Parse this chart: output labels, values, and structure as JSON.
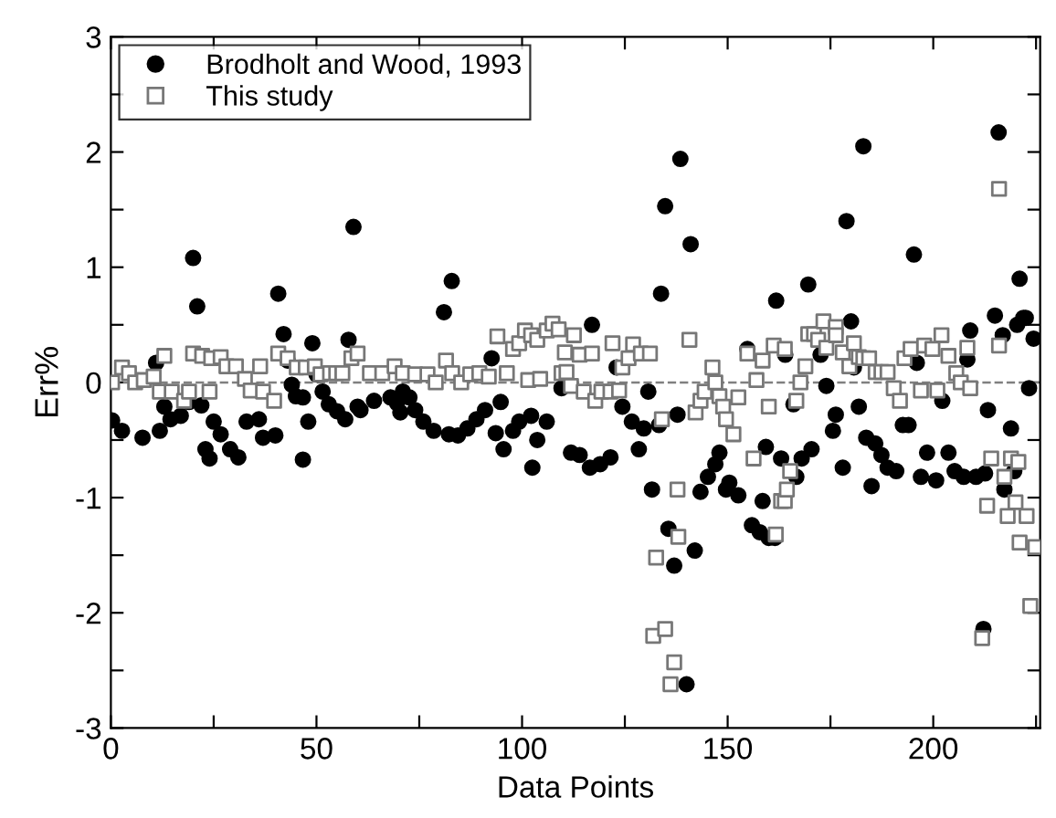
{
  "chart_data": {
    "type": "scatter",
    "xlabel": "Data Points",
    "ylabel": "Err%",
    "xlim": [
      0,
      226
    ],
    "ylim": [
      -3,
      3
    ],
    "xticks": [
      0,
      {
        "value": 25,
        "label": null
      },
      50,
      {
        "value": 75,
        "label": null
      },
      100,
      {
        "value": 125,
        "label": null
      },
      150,
      {
        "value": 175,
        "label": null
      },
      200,
      {
        "value": 225,
        "label": null
      }
    ],
    "yticks": [
      -3,
      {
        "value": -2.5,
        "label": null
      },
      -2,
      {
        "value": -1.5,
        "label": null
      },
      -1,
      {
        "value": -0.5,
        "label": null
      },
      0,
      {
        "value": 0.5,
        "label": null
      },
      1,
      {
        "value": 1.5,
        "label": null
      },
      2,
      {
        "value": 2.5,
        "label": null
      },
      3
    ],
    "grid": false,
    "legend": "top left",
    "ref_lines": [
      {
        "axis": "y",
        "value": 0,
        "color": "#808080",
        "line_style": "dashed"
      }
    ],
    "series": [
      {
        "name": "Brodholt and Wood, 1993",
        "color": "#000000",
        "marker": "circle",
        "x": [
          0.3,
          2.7,
          7.7,
          11,
          11.9,
          13,
          14.5,
          17,
          19,
          20,
          21,
          22,
          23,
          24,
          25,
          26.7,
          29,
          31,
          33,
          36,
          37,
          40,
          40.7,
          42,
          43,
          44,
          45,
          46.7,
          46.7,
          48,
          49,
          50,
          51.5,
          53,
          55,
          57,
          57.8,
          59,
          60,
          60.7,
          64,
          68,
          69.6,
          70.4,
          71,
          72.6,
          74,
          76,
          78.5,
          81,
          82.2,
          82.9,
          84.4,
          86.7,
          88.9,
          91,
          92.6,
          93.6,
          94.8,
          95.5,
          97.8,
          99.3,
          102.2,
          102.5,
          103.7,
          106,
          109.6,
          111.9,
          114,
          116.5,
          117,
          119,
          121.5,
          123,
          124.4,
          126.7,
          128.4,
          129.6,
          130.7,
          131.6,
          133.3,
          133.8,
          134.8,
          135.6,
          137,
          137.8,
          138.5,
          140,
          141,
          142,
          143.4,
          145.2,
          147,
          148,
          149.6,
          150.4,
          152.6,
          154.8,
          155.9,
          157.8,
          158.5,
          159.3,
          160,
          161.5,
          161.8,
          163,
          164,
          166,
          166.7,
          168,
          169.6,
          170.4,
          172.6,
          174,
          175.6,
          176.3,
          178,
          178.9,
          180,
          180.7,
          181.9,
          183,
          183.7,
          185,
          185.9,
          187.4,
          188.9,
          191,
          192.6,
          194,
          195.3,
          196,
          197,
          198.5,
          200.7,
          202.2,
          203.7,
          205.2,
          207.4,
          208.3,
          209,
          210.4,
          212.2,
          212.6,
          213.3,
          215,
          215.9,
          216.9,
          217.3,
          218.9,
          219.7,
          220.4,
          221,
          221.9,
          222.5,
          223.3,
          224.4
        ],
        "values": [
          -0.33,
          -0.42,
          -0.48,
          0.17,
          -0.42,
          -0.21,
          -0.32,
          -0.29,
          -0.17,
          1.08,
          0.66,
          -0.2,
          -0.58,
          -0.66,
          -0.34,
          -0.45,
          -0.58,
          -0.65,
          -0.34,
          -0.32,
          -0.48,
          -0.46,
          0.77,
          0.42,
          0.19,
          -0.02,
          -0.12,
          -0.13,
          -0.67,
          -0.34,
          0.34,
          0.07,
          -0.08,
          -0.19,
          -0.25,
          -0.32,
          0.37,
          1.35,
          -0.21,
          -0.24,
          -0.16,
          -0.13,
          -0.18,
          -0.26,
          -0.08,
          -0.13,
          -0.24,
          -0.34,
          -0.42,
          0.61,
          -0.45,
          0.88,
          -0.46,
          -0.4,
          -0.32,
          -0.24,
          0.21,
          -0.44,
          -0.17,
          -0.58,
          -0.42,
          -0.34,
          -0.29,
          -0.74,
          -0.5,
          -0.34,
          -0.05,
          -0.61,
          -0.63,
          -0.74,
          0.5,
          -0.71,
          -0.65,
          0.13,
          -0.21,
          -0.34,
          -0.58,
          -0.4,
          -0.08,
          -0.93,
          -0.37,
          0.77,
          1.53,
          -1.27,
          -1.59,
          -0.28,
          1.94,
          -2.62,
          1.2,
          -1.46,
          -0.95,
          -0.82,
          -0.71,
          -0.61,
          -0.93,
          -0.87,
          -0.98,
          0.29,
          -1.24,
          -1.3,
          -1.03,
          -0.56,
          -1.35,
          -1.35,
          0.71,
          -0.66,
          0.24,
          -0.19,
          -0.82,
          -0.66,
          0.85,
          -0.58,
          0.24,
          -0.03,
          -0.42,
          -0.28,
          -0.74,
          1.4,
          0.53,
          0.13,
          -0.21,
          2.05,
          -0.48,
          -0.9,
          -0.53,
          -0.63,
          -0.74,
          -0.77,
          -0.37,
          -0.37,
          1.11,
          0.17,
          -0.82,
          -0.61,
          -0.85,
          -0.16,
          -0.61,
          -0.77,
          -0.82,
          0.2,
          0.45,
          -0.82,
          -2.14,
          -0.79,
          -0.24,
          0.58,
          2.17,
          0.41,
          -0.93,
          -0.4,
          -0.77,
          0.5,
          0.9,
          0.56,
          0.56,
          -0.05,
          0.38
        ]
      },
      {
        "name": "This study",
        "color": "#777777",
        "marker": "square",
        "x": [
          0.3,
          2.7,
          4.4,
          5.9,
          8,
          10.4,
          11.9,
          13,
          14.8,
          17.8,
          19,
          20,
          22.2,
          24,
          24.4,
          26.7,
          28.1,
          30.4,
          32.6,
          34,
          36.3,
          37,
          39.7,
          40.7,
          43,
          45.2,
          47.4,
          49.6,
          51,
          53.3,
          54.8,
          56.3,
          58.5,
          60,
          63,
          66,
          69,
          71,
          74,
          77,
          79,
          81.5,
          83,
          85.2,
          87.4,
          89.6,
          91.9,
          94,
          96.3,
          97.8,
          99.3,
          100.7,
          101.5,
          102.2,
          103.7,
          104.4,
          106,
          107.4,
          108.9,
          109.6,
          110.4,
          110.8,
          111.9,
          112.6,
          114,
          115,
          117,
          117.8,
          119.3,
          121.5,
          122,
          123.6,
          124.4,
          125.9,
          127,
          128.9,
          131.1,
          131.9,
          132.6,
          134,
          134.8,
          136.1,
          137,
          137.8,
          138,
          140.7,
          142.2,
          143.4,
          144.4,
          146.3,
          147,
          148,
          148.9,
          149.6,
          151.4,
          152.6,
          154.8,
          156.3,
          157,
          158.5,
          160,
          161.2,
          161.7,
          163,
          163.9,
          163.9,
          164.4,
          165.2,
          166.7,
          167.7,
          168.9,
          169.6,
          171,
          172,
          173.3,
          174,
          176.3,
          176.3,
          178,
          179.6,
          180.7,
          181.9,
          183,
          184.4,
          186,
          187.4,
          188.9,
          190.4,
          191.9,
          193,
          194.5,
          197,
          197.8,
          199.8,
          201,
          202,
          203.7,
          205.6,
          206.7,
          208.3,
          209,
          211.9,
          213.1,
          214.1,
          216,
          216,
          217.3,
          218.1,
          218.9,
          220,
          220.7,
          221,
          222.7,
          223.6,
          224.8
        ],
        "values": [
          0,
          0.13,
          0.08,
          0,
          0.02,
          0.05,
          -0.08,
          0.23,
          -0.08,
          -0.16,
          -0.08,
          0.25,
          0.23,
          -0.08,
          0.21,
          0.22,
          0.14,
          0.14,
          0.03,
          -0.07,
          0.14,
          -0.08,
          -0.16,
          0.25,
          0.21,
          0.13,
          0.13,
          0.14,
          0.07,
          0.08,
          0.08,
          0.08,
          0.21,
          0.25,
          0.08,
          0.08,
          0.14,
          0.08,
          0.07,
          0.07,
          0,
          0.19,
          0.08,
          0,
          0.07,
          0.08,
          0.05,
          0.4,
          0.08,
          0.29,
          0.34,
          0.45,
          0.02,
          0.41,
          0.37,
          0.03,
          0.45,
          0.51,
          0.46,
          0.08,
          0.26,
          0.09,
          -0.03,
          0.41,
          0.24,
          -0.08,
          0.25,
          -0.16,
          -0.08,
          -0.08,
          0.34,
          -0.07,
          0.13,
          0.21,
          0.33,
          0.25,
          0.25,
          -2.2,
          -1.52,
          -0.32,
          -2.14,
          -2.62,
          -2.43,
          -0.93,
          -1.34,
          0.37,
          -0.26,
          -0.16,
          -0.08,
          0.13,
          0,
          -0.12,
          -0.21,
          -0.32,
          -0.45,
          -0.13,
          0.25,
          -0.66,
          0.02,
          0.19,
          -0.21,
          0.32,
          -1.32,
          -1.03,
          0.29,
          -1.03,
          -0.93,
          -0.77,
          -0.16,
          0,
          0.14,
          0.42,
          0.42,
          0.37,
          0.53,
          0.3,
          0.48,
          0.41,
          0.26,
          0.14,
          0.34,
          0.22,
          0.21,
          0.21,
          0.09,
          0.09,
          0.09,
          -0.05,
          -0.16,
          0.21,
          0.29,
          -0.07,
          0.32,
          0.29,
          -0.07,
          0.41,
          0.23,
          0.08,
          0,
          0.3,
          -0.05,
          -2.22,
          -1.07,
          -0.66,
          0.32,
          1.68,
          -0.82,
          -1.16,
          -0.66,
          -1.04,
          -0.69,
          -1.39,
          -1.16,
          -1.94,
          -1.43
        ]
      }
    ]
  }
}
